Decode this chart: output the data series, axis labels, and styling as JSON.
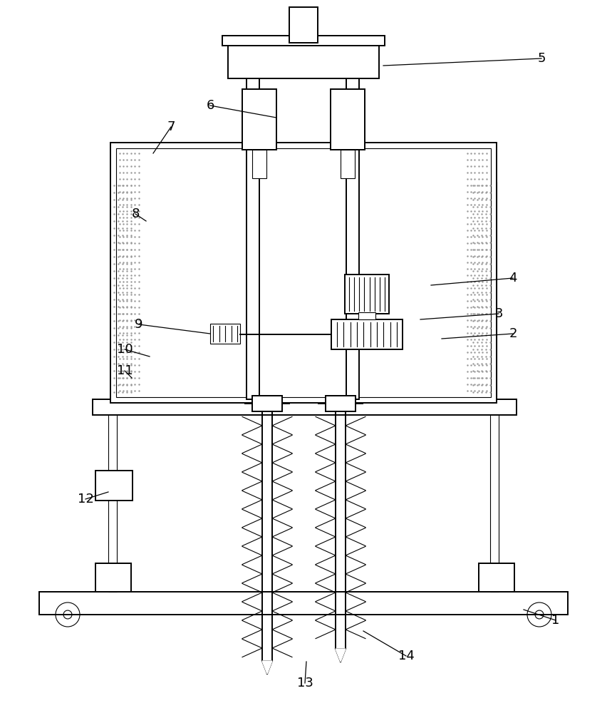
{
  "bg_color": "#ffffff",
  "line_color": "#000000",
  "figsize": [
    8.52,
    10.0
  ],
  "dpi": 100,
  "lw_main": 1.4,
  "lw_thin": 0.8,
  "lw_med": 1.1
}
